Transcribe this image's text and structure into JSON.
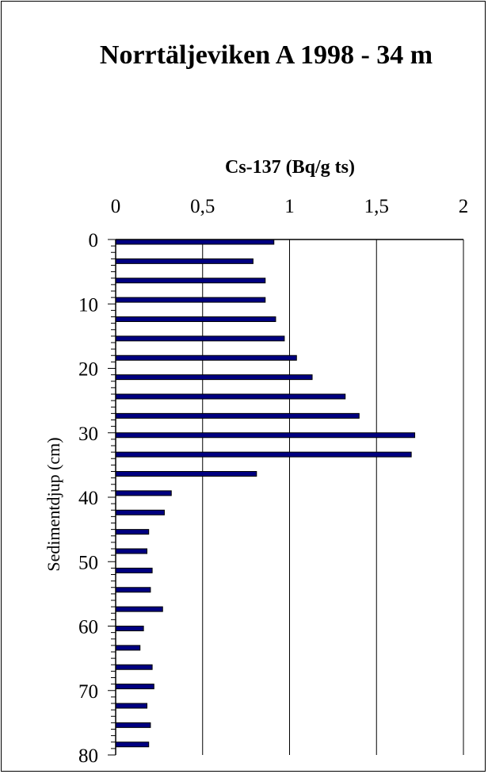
{
  "chart_data": {
    "type": "bar",
    "orientation": "horizontal",
    "title": "Norrtäljeviken A 1998 - 34 m",
    "xlabel": "Cs-137 (Bq/g ts)",
    "ylabel": "Sedimentdjup (cm)",
    "xlim": [
      0,
      2
    ],
    "ylim": [
      0,
      80
    ],
    "x_ticks": [
      "0",
      "0,5",
      "1",
      "1,5",
      "2"
    ],
    "y_ticks": [
      "0",
      "10",
      "20",
      "30",
      "40",
      "50",
      "60",
      "70",
      "80"
    ],
    "x_axis_position": "top",
    "grid": "vertical",
    "bar_color": "#000080",
    "depths": [
      0,
      3,
      6,
      9,
      12,
      15,
      18,
      21,
      24,
      27,
      30,
      33,
      36,
      39,
      42,
      45,
      48,
      51,
      54,
      57,
      60,
      63,
      66,
      69,
      72,
      75,
      78
    ],
    "values": [
      0.91,
      0.79,
      0.86,
      0.86,
      0.92,
      0.97,
      1.04,
      1.13,
      1.32,
      1.4,
      1.72,
      1.7,
      0.81,
      0.32,
      0.28,
      0.19,
      0.18,
      0.21,
      0.2,
      0.27,
      0.16,
      0.14,
      0.21,
      0.22,
      0.18,
      0.2,
      0.19
    ]
  }
}
